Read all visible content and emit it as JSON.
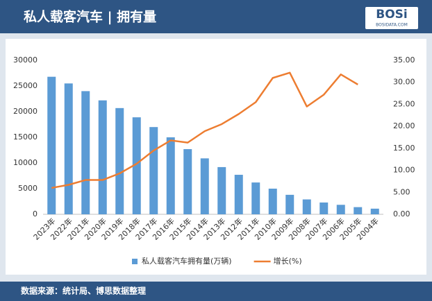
{
  "logo": {
    "name": "BOSi",
    "site": "BOSIDATA.COM"
  },
  "chart_data": {
    "type": "bar_line",
    "title": "私人载客汽车 | 拥有量",
    "source": "数据来源：统计局、博思数据整理",
    "categories": [
      "2023年",
      "2022年",
      "2021年",
      "2020年",
      "2019年",
      "2018年",
      "2017年",
      "2016年",
      "2015年",
      "2014年",
      "2013年",
      "2012年",
      "2011年",
      "2010年",
      "2009年",
      "2008年",
      "2007年",
      "2006年",
      "2005年",
      "2004年"
    ],
    "series": [
      {
        "name": "私人载客汽车拥有量(万辆)",
        "type": "bar",
        "color": "#5b9bd5",
        "values": [
          26800,
          25500,
          24000,
          22200,
          20700,
          18900,
          17000,
          15000,
          12700,
          10900,
          9200,
          7700,
          6200,
          5000,
          3800,
          2900,
          2300,
          1850,
          1400,
          1100
        ]
      },
      {
        "name": "增长(%)",
        "type": "line",
        "axis": "y2",
        "color": "#ed7d31",
        "values": [
          6.0,
          6.7,
          7.8,
          7.8,
          9.3,
          11.5,
          14.5,
          16.8,
          16.3,
          18.9,
          20.5,
          22.8,
          25.5,
          31.0,
          32.2,
          24.5,
          27.2,
          31.8,
          29.5,
          null
        ]
      }
    ],
    "ylim": [
      0,
      30000
    ],
    "yticks": [
      0,
      5000,
      10000,
      15000,
      20000,
      25000,
      30000
    ],
    "y2lim": [
      0,
      35
    ],
    "y2ticks": [
      {
        "value": 0,
        "label": "0.00"
      },
      {
        "value": 5,
        "label": "5.00"
      },
      {
        "value": 10,
        "label": "10.00"
      },
      {
        "value": 15,
        "label": "15.00"
      },
      {
        "value": 20,
        "label": "20.00"
      },
      {
        "value": 25,
        "label": "25.00"
      },
      {
        "value": 30,
        "label": "30.00"
      },
      {
        "value": 35,
        "label": "35.00"
      }
    ],
    "legend": "bottom"
  }
}
